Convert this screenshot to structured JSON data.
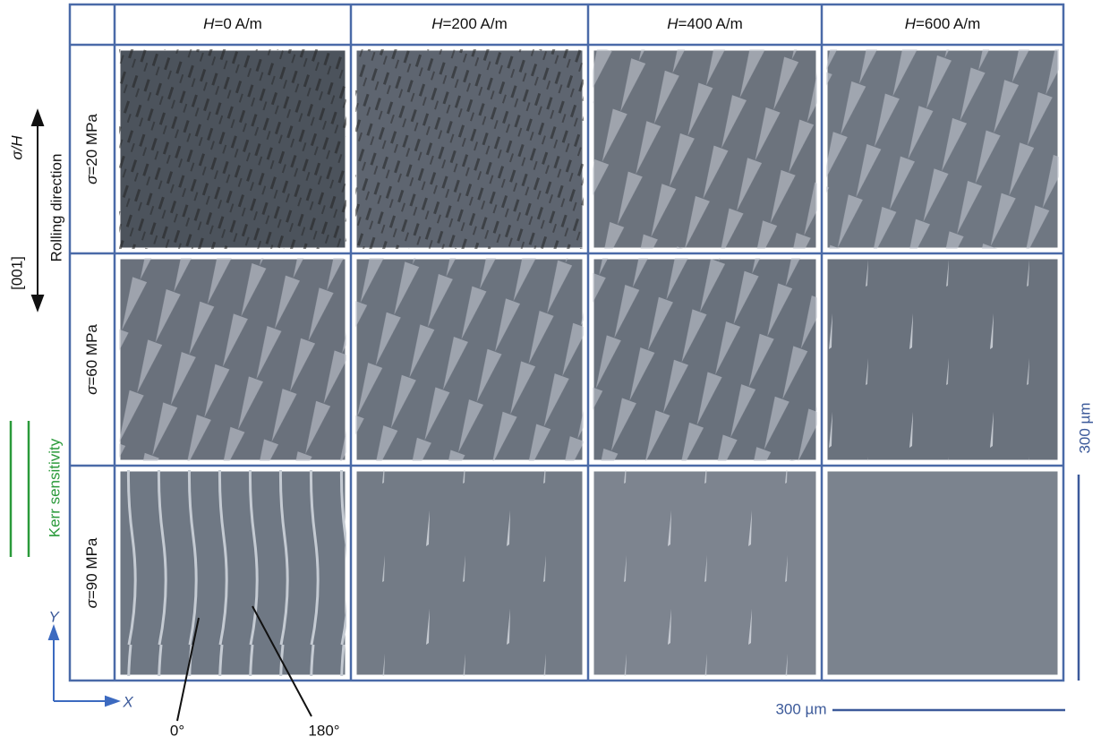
{
  "column_headers": [
    {
      "symbol": "H",
      "text": "=0 A/m"
    },
    {
      "symbol": "H",
      "text": "=200 A/m"
    },
    {
      "symbol": "H",
      "text": "=400 A/m"
    },
    {
      "symbol": "H",
      "text": "=600 A/m"
    }
  ],
  "row_headers": [
    {
      "symbol": "σ",
      "text": "=20 MPa"
    },
    {
      "symbol": "σ",
      "text": "=60 MPa"
    },
    {
      "symbol": "σ",
      "text": "=90 MPa"
    }
  ],
  "annotations": {
    "direction_top": "σ/H",
    "direction_bottom": "[001]",
    "direction_label": "Rolling direction",
    "kerr": "Kerr sensitivity",
    "axis_y": "Y",
    "axis_x": "X",
    "angle_0": "0°",
    "angle_180": "180°",
    "scale_y": "300 µm",
    "scale_x": "300 µm"
  }
}
